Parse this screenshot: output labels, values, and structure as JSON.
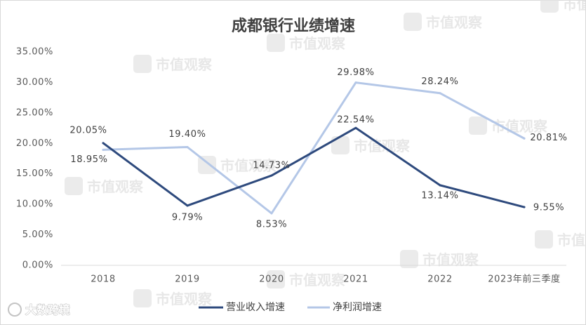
{
  "chart_data": {
    "type": "line",
    "title": "成都银行业绩增速",
    "xlabel": "",
    "ylabel": "",
    "categories": [
      "2018",
      "2019",
      "2020",
      "2021",
      "2022",
      "2023年前三季度"
    ],
    "series": [
      {
        "name": "营业收入增速",
        "values": [
          20.05,
          9.79,
          14.73,
          22.54,
          13.14,
          9.55
        ],
        "color": "#2E4A7D"
      },
      {
        "name": "净利润增速",
        "values": [
          18.95,
          19.4,
          8.53,
          29.98,
          28.24,
          20.81
        ],
        "color": "#B4C7E7"
      }
    ],
    "ylim": [
      0,
      35
    ],
    "y_tick_values": [
      0,
      5,
      10,
      15,
      20,
      25,
      30,
      35
    ],
    "y_tick_labels": [
      "0.00%",
      "5.00%",
      "10.00%",
      "15.00%",
      "20.00%",
      "25.00%",
      "30.00%",
      "35.00%"
    ],
    "data_labels": true,
    "grid": false,
    "legend": "bottom-center"
  },
  "watermark": {
    "text": "市值观察"
  },
  "branding": {
    "text": "大数跨境"
  }
}
